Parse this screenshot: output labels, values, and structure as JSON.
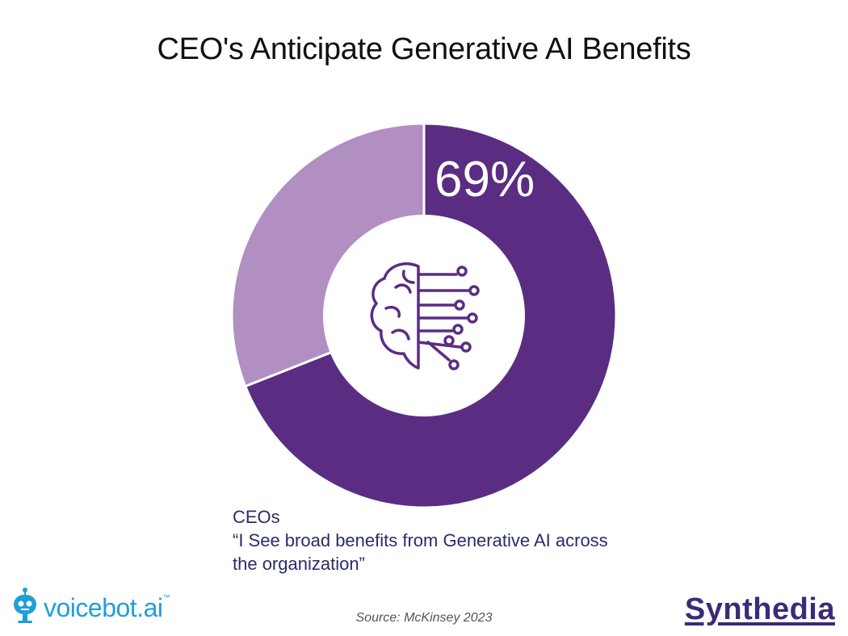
{
  "title": "CEO's Anticipate Generative AI Benefits",
  "chart_data": {
    "type": "pie",
    "variant": "donut",
    "slices": [
      {
        "label": "CEOs",
        "value": 69,
        "color": "#5a2d82"
      },
      {
        "label": "",
        "value": 31,
        "color": "#b18fc3"
      }
    ],
    "data_label": "69%",
    "center_icon": "brain-circuit-icon"
  },
  "annotation": {
    "group": "CEOs",
    "quote": "“I See broad benefits from Generative AI across the organization”"
  },
  "source": "Source: McKinsey 2023",
  "logos": {
    "left": {
      "name": "voicebot",
      "suffix": ".ai",
      "tm": "™",
      "icon": "robot-mic-icon",
      "color": "#1f9fd8"
    },
    "right": {
      "name": "Synthedia",
      "color": "#3c2a79"
    }
  }
}
